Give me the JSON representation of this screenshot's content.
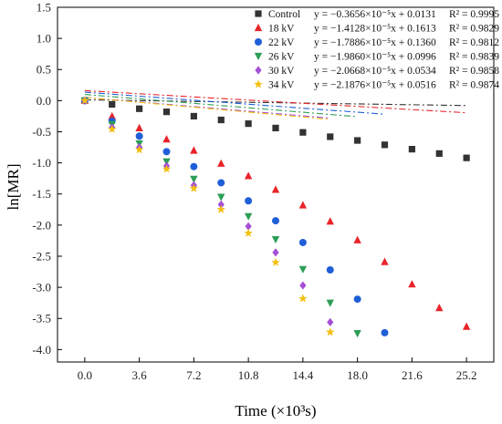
{
  "chart_data": {
    "type": "scatter",
    "xlabel": "Time (×10³s)",
    "ylabel": "ln[MR]",
    "xlim": [
      -1.8,
      27.0
    ],
    "ylim": [
      -4.2,
      1.5
    ],
    "x_ticks": [
      0.0,
      3.6,
      7.2,
      10.8,
      14.4,
      18.0,
      21.6,
      25.2
    ],
    "x_tick_labels": [
      "0.0",
      "3.6",
      "7.2",
      "10.8",
      "14.4",
      "18.0",
      "21.6",
      "25.2"
    ],
    "y_ticks": [
      1.5,
      1.0,
      0.5,
      0.0,
      -0.5,
      -1.0,
      -1.5,
      -2.0,
      -2.5,
      -3.0,
      -3.5,
      -4.0
    ],
    "y_tick_labels": [
      "1.5",
      "1.0",
      "0.5",
      "0.0",
      "-0.5",
      "-1.0",
      "-1.5",
      "-2.0",
      "-2.5",
      "-3.0",
      "-3.5",
      "-4.0"
    ],
    "legend_position": "top-right",
    "grid": false,
    "series": [
      {
        "name": "Control",
        "marker": "square",
        "color": "#333333",
        "equation": "y = −0.3656×10⁻⁵x + 0.0131",
        "r2": "R² = 0.9995",
        "x": [
          0.0,
          1.8,
          3.6,
          5.4,
          7.2,
          9.0,
          10.8,
          12.6,
          14.4,
          16.2,
          18.0,
          19.8,
          21.6,
          23.4,
          25.2
        ],
        "y": [
          0.0,
          -0.06,
          -0.13,
          -0.18,
          -0.25,
          -0.31,
          -0.37,
          -0.44,
          -0.51,
          -0.58,
          -0.64,
          -0.71,
          -0.78,
          -0.85,
          -0.92
        ],
        "fit_x": [
          0.0,
          25.2
        ]
      },
      {
        "name": "18 kV",
        "marker": "triangle-up",
        "color": "#e8242a",
        "equation": "y = −1.4128×10⁻⁵x + 0.1613",
        "r2": "R² = 0.9829",
        "x": [
          0.0,
          1.8,
          3.6,
          5.4,
          7.2,
          9.0,
          10.8,
          12.6,
          14.4,
          16.2,
          18.0,
          19.8,
          21.6,
          23.4,
          25.2
        ],
        "y": [
          0.0,
          -0.25,
          -0.44,
          -0.62,
          -0.8,
          -1.01,
          -1.21,
          -1.43,
          -1.68,
          -1.94,
          -2.24,
          -2.59,
          -2.95,
          -3.33,
          -3.63
        ],
        "fit_x": [
          0.0,
          25.2
        ]
      },
      {
        "name": "22 kV",
        "marker": "circle",
        "color": "#1f5fd8",
        "equation": "y = −1.7886×10⁻⁵x + 0.1360",
        "r2": "R² = 0.9812",
        "x": [
          0.0,
          1.8,
          3.6,
          5.4,
          7.2,
          9.0,
          10.8,
          12.6,
          14.4,
          16.2,
          18.0,
          19.8
        ],
        "y": [
          0.0,
          -0.33,
          -0.57,
          -0.82,
          -1.06,
          -1.32,
          -1.61,
          -1.93,
          -2.28,
          -2.72,
          -3.19,
          -3.73
        ],
        "fit_x": [
          0.0,
          19.8
        ]
      },
      {
        "name": "26 kV",
        "marker": "triangle-down",
        "color": "#2e9e57",
        "equation": "y = −1.9860×10⁻⁵x + 0.0996",
        "r2": "R² = 0.9839",
        "x": [
          0.0,
          1.8,
          3.6,
          5.4,
          7.2,
          9.0,
          10.8,
          12.6,
          14.4,
          16.2,
          18.0
        ],
        "y": [
          0.0,
          -0.38,
          -0.69,
          -0.98,
          -1.26,
          -1.55,
          -1.86,
          -2.23,
          -2.71,
          -3.25,
          -3.74
        ],
        "fit_x": [
          0.0,
          18.0
        ]
      },
      {
        "name": "30 kV",
        "marker": "diamond",
        "color": "#a64fd6",
        "equation": "y = −2.0668×10⁻⁵x + 0.0534",
        "r2": "R² = 0.9858",
        "x": [
          0.0,
          1.8,
          3.6,
          5.4,
          7.2,
          9.0,
          10.8,
          12.6,
          14.4,
          16.2
        ],
        "y": [
          0.0,
          -0.43,
          -0.75,
          -1.05,
          -1.36,
          -1.67,
          -2.02,
          -2.44,
          -2.97,
          -3.56
        ],
        "fit_x": [
          0.0,
          16.2
        ]
      },
      {
        "name": "34 kV",
        "marker": "star",
        "color": "#f2c010",
        "equation": "y = −2.1876×10⁻⁵x + 0.0516",
        "r2": "R² = 0.9874",
        "x": [
          0.0,
          1.8,
          3.6,
          5.4,
          7.2,
          9.0,
          10.8,
          12.6,
          14.4,
          16.2
        ],
        "y": [
          0.0,
          -0.46,
          -0.79,
          -1.1,
          -1.41,
          -1.75,
          -2.13,
          -2.6,
          -3.18,
          -3.72
        ],
        "fit_x": [
          0.0,
          16.2
        ]
      }
    ]
  }
}
